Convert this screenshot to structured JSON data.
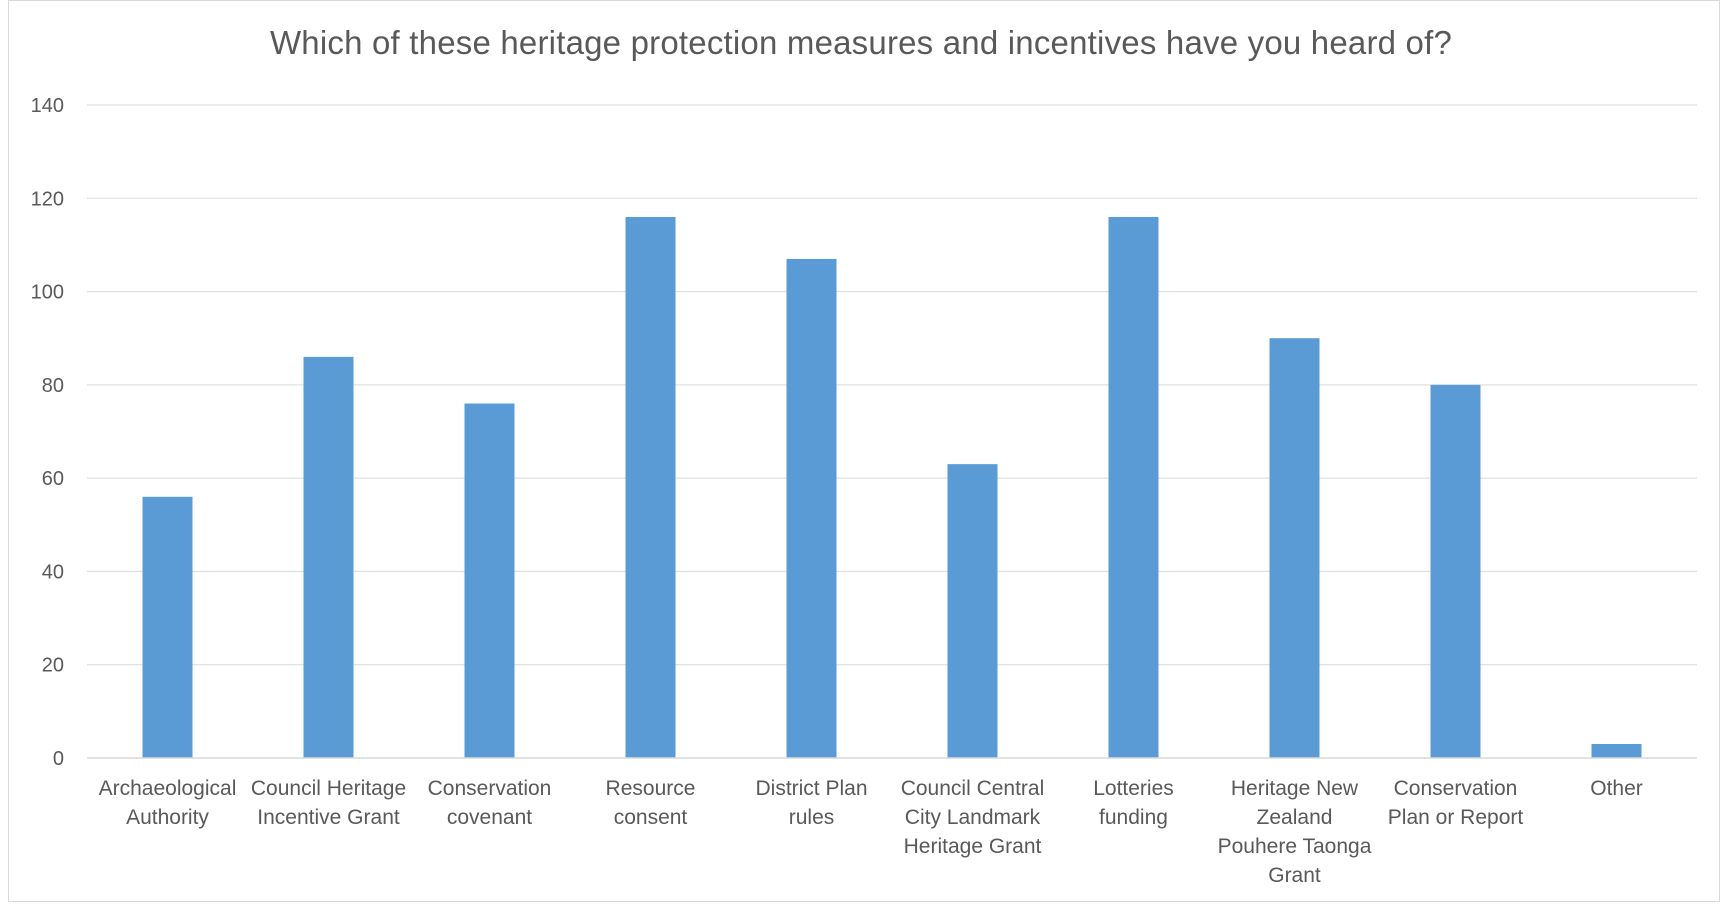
{
  "chart_data": {
    "type": "bar",
    "title": "Which of these heritage protection measures and incentives have you heard of?",
    "xlabel": "",
    "ylabel": "",
    "ylim": [
      0,
      140
    ],
    "yticks": [
      0,
      20,
      40,
      60,
      80,
      100,
      120,
      140
    ],
    "grid": true,
    "legend": "none",
    "bar_color": "#5b9bd5",
    "categories": [
      [
        "Archaeological",
        "Authority"
      ],
      [
        "Council Heritage",
        "Incentive Grant"
      ],
      [
        "Conservation",
        "covenant"
      ],
      [
        "Resource",
        "consent"
      ],
      [
        "District Plan",
        "rules"
      ],
      [
        "Council Central",
        "City Landmark",
        "Heritage Grant"
      ],
      [
        "Lotteries",
        "funding"
      ],
      [
        "Heritage New",
        "Zealand",
        "Pouhere Taonga",
        "Grant"
      ],
      [
        "Conservation",
        "Plan or Report"
      ],
      [
        "Other"
      ]
    ],
    "values": [
      56,
      86,
      76,
      116,
      107,
      63,
      116,
      90,
      80,
      3
    ]
  }
}
